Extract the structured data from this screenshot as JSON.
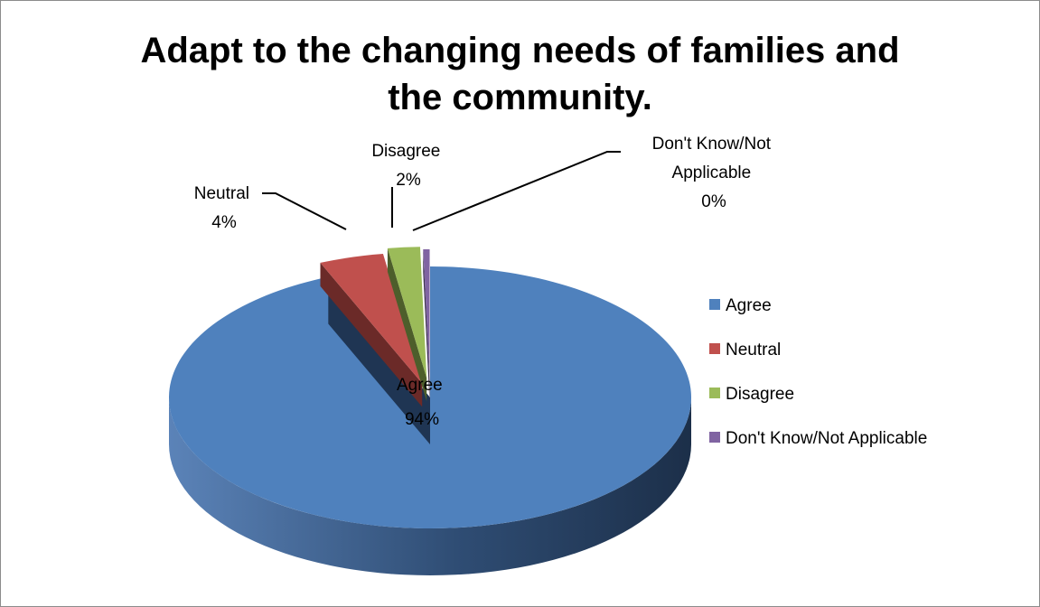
{
  "chart_data": {
    "type": "pie",
    "style": "3d-exploded",
    "title_lines": [
      "Adapt to the changing needs of families and",
      "the community."
    ],
    "categories": [
      "Agree",
      "Neutral",
      "Disagree",
      "Don't Know/Not Applicable"
    ],
    "values": [
      94,
      4,
      2,
      0
    ],
    "data_labels": [
      {
        "category": "Agree",
        "lines": [
          "Agree",
          "94%"
        ]
      },
      {
        "category": "Neutral",
        "lines": [
          "Neutral",
          "4%"
        ]
      },
      {
        "category": "Disagree",
        "lines": [
          "Disagree",
          "2%"
        ]
      },
      {
        "category": "Don't Know/Not Applicable",
        "lines": [
          "Don't Know/Not",
          "Applicable",
          "0%"
        ]
      }
    ],
    "legend": {
      "position": "right",
      "entries": [
        "Agree",
        "Neutral",
        "Disagree",
        "Don't Know/Not Applicable"
      ]
    },
    "colors": [
      "#4F81BD",
      "#C0504D",
      "#9BBB59",
      "#8064A2"
    ]
  }
}
